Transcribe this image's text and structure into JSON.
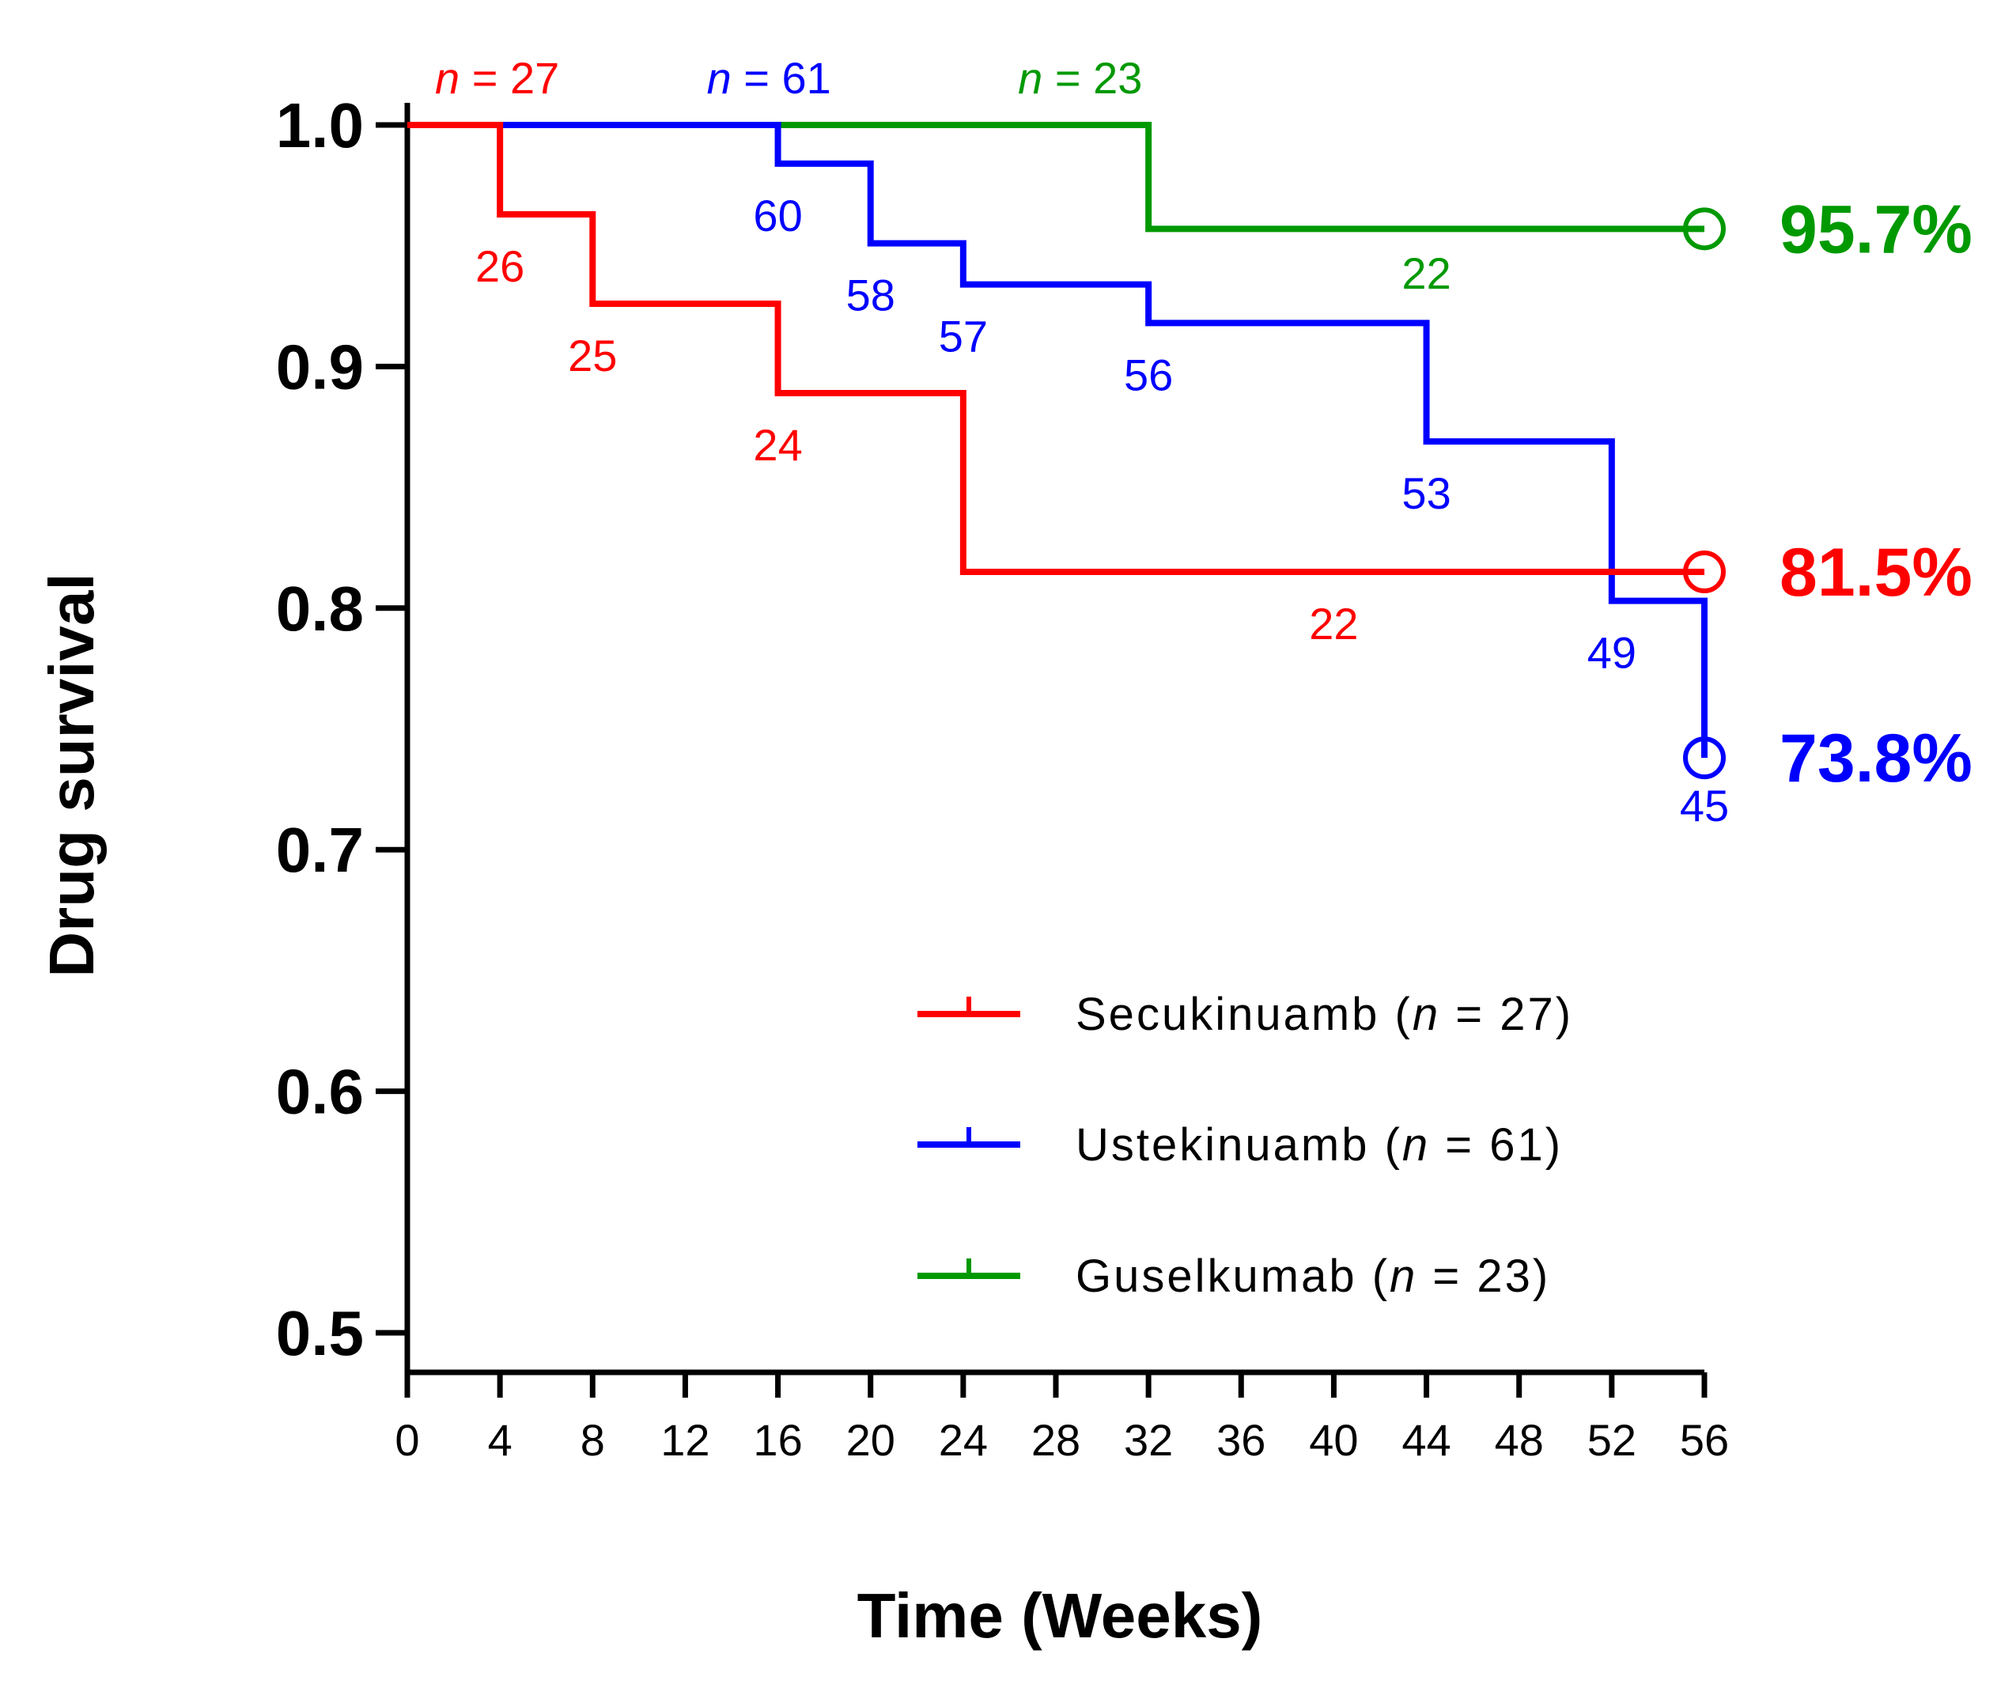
{
  "chart_data": {
    "type": "line",
    "subtype": "kaplan-meier step",
    "title": "",
    "xlabel": "Time (Weeks)",
    "ylabel": "Drug survival",
    "xlim": [
      0,
      56
    ],
    "ylim": [
      0.5,
      1.0
    ],
    "x_ticks": [
      "0",
      "4",
      "8",
      "12",
      "16",
      "20",
      "24",
      "28",
      "32",
      "36",
      "40",
      "44",
      "48",
      "52",
      "56"
    ],
    "y_ticks": [
      "0.5",
      "0.6",
      "0.7",
      "0.8",
      "0.9",
      "1.0"
    ],
    "grid": false,
    "legend_position": "bottom-right",
    "series": [
      {
        "name": "Secukinuamb",
        "n": "27",
        "color": "#ff0000",
        "steps": [
          [
            0,
            1.0
          ],
          [
            4,
            0.963
          ],
          [
            8,
            0.926
          ],
          [
            16,
            0.889
          ],
          [
            24,
            0.815
          ],
          [
            56,
            0.815
          ]
        ],
        "start_label": "27",
        "risk_labels": [
          {
            "x": 4,
            "y": 0.963,
            "text": "26"
          },
          {
            "x": 8,
            "y": 0.926,
            "text": "25"
          },
          {
            "x": 16,
            "y": 0.889,
            "text": "24"
          },
          {
            "x": 40,
            "y": 0.815,
            "text": "22"
          }
        ],
        "end_value": "81.5%"
      },
      {
        "name": "Ustekinuamb",
        "n": "61",
        "color": "#0000ff",
        "steps": [
          [
            0,
            1.0
          ],
          [
            16,
            0.984
          ],
          [
            20,
            0.951
          ],
          [
            24,
            0.934
          ],
          [
            32,
            0.918
          ],
          [
            44,
            0.869
          ],
          [
            52,
            0.803
          ],
          [
            56,
            0.738
          ]
        ],
        "start_label": "61",
        "risk_labels": [
          {
            "x": 16,
            "y": 0.984,
            "text": "60"
          },
          {
            "x": 20,
            "y": 0.951,
            "text": "58"
          },
          {
            "x": 24,
            "y": 0.934,
            "text": "57"
          },
          {
            "x": 32,
            "y": 0.918,
            "text": "56"
          },
          {
            "x": 44,
            "y": 0.869,
            "text": "53"
          },
          {
            "x": 52,
            "y": 0.803,
            "text": "49"
          },
          {
            "x": 56,
            "y": 0.738,
            "text": "45"
          }
        ],
        "end_value": "73.8%"
      },
      {
        "name": "Guselkumab",
        "n": "23",
        "color": "#009900",
        "steps": [
          [
            0,
            1.0
          ],
          [
            32,
            0.957
          ],
          [
            56,
            0.957
          ]
        ],
        "start_label": "23",
        "risk_labels": [
          {
            "x": 44,
            "y": 0.957,
            "text": "22"
          }
        ],
        "end_value": "95.7%"
      }
    ]
  }
}
